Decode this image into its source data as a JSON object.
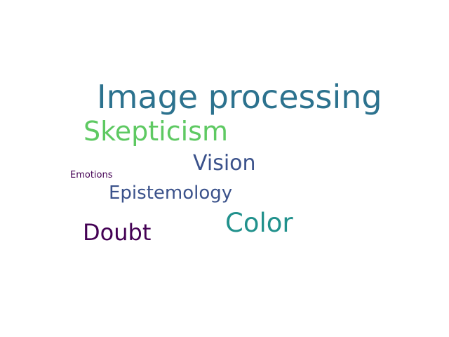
{
  "word_cloud": {
    "words": [
      {
        "text": "Image processing",
        "color": "#2c728e"
      },
      {
        "text": "Skepticism",
        "color": "#5ec962"
      },
      {
        "text": "Vision",
        "color": "#3b528b"
      },
      {
        "text": "Emotions",
        "color": "#440154"
      },
      {
        "text": "Epistemology",
        "color": "#3b528b"
      },
      {
        "text": "Color",
        "color": "#21918c"
      },
      {
        "text": "Doubt",
        "color": "#440154"
      }
    ]
  }
}
